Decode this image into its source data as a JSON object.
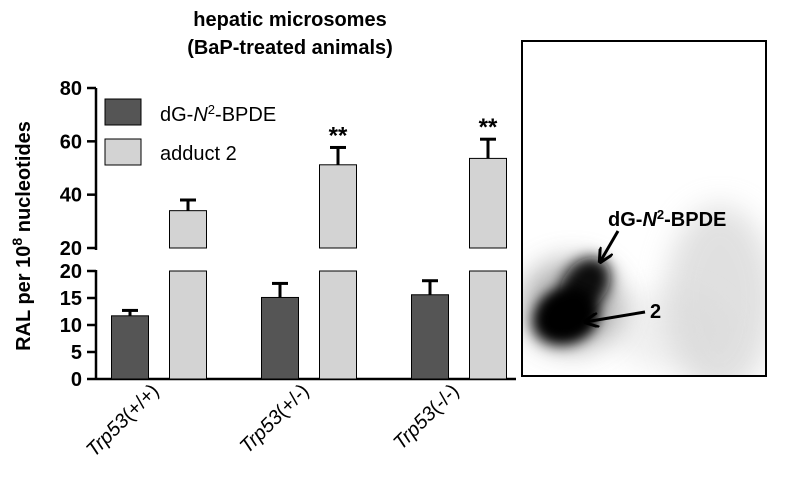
{
  "chart_data": {
    "type": "bar",
    "title_line1": "hepatic microsomes",
    "title_line2": "(BaP-treated animals)",
    "ylabel": {
      "prefix": "RAL per 10",
      "exponent": "8",
      "suffix": " nucleotides"
    },
    "categories": [
      {
        "prefix": "Trp53",
        "suffix": "(+/+)"
      },
      {
        "prefix": "Trp53",
        "suffix": "(+/-)"
      },
      {
        "prefix": "Trp53",
        "suffix": "(-/-)"
      }
    ],
    "y_axis_upper": {
      "range": [
        20,
        80
      ],
      "ticks": [
        "20",
        "40",
        "60",
        "80"
      ]
    },
    "y_axis_lower": {
      "range": [
        0,
        20
      ],
      "ticks": [
        "0",
        "5",
        "10",
        "15",
        "20"
      ]
    },
    "series": [
      {
        "name": {
          "prefix": "dG-",
          "italic": "N",
          "superscript": "2",
          "suffix": "-BPDE"
        },
        "color": "#555555",
        "values": [
          11.7,
          15.1,
          15.6
        ],
        "errors": [
          1.0,
          2.6,
          2.6
        ],
        "annotations": [
          "",
          "",
          ""
        ]
      },
      {
        "name": {
          "text": "adduct 2"
        },
        "color": "#d3d3d3",
        "values": [
          34.0,
          51.2,
          53.6
        ],
        "errors": [
          4.0,
          6.5,
          7.2
        ],
        "annotations": [
          "",
          "**",
          "**"
        ]
      }
    ],
    "grid": false,
    "legend_position": "top-left",
    "inset": {
      "spot1_label": {
        "prefix": "dG-",
        "italic": "N",
        "superscript": "2",
        "suffix": "-BPDE"
      },
      "spot2_label": "2"
    }
  }
}
